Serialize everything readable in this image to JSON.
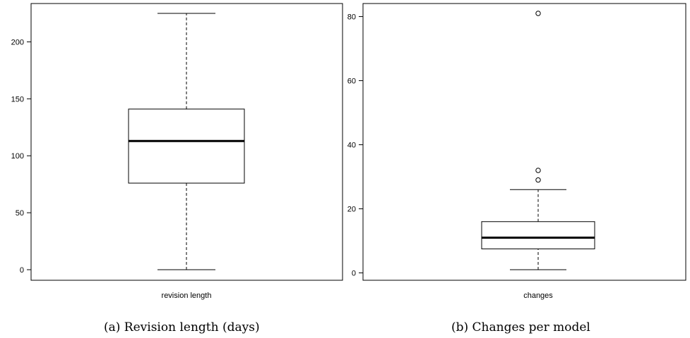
{
  "chart_data": [
    {
      "type": "boxplot",
      "caption": "(a)  Revision length (days)",
      "xlabel": "revision length",
      "ylim": [
        0,
        225
      ],
      "yticks": [
        0,
        50,
        100,
        150,
        200
      ],
      "box": {
        "min": 0,
        "q1": 76,
        "median": 113,
        "q3": 141,
        "max": 225
      },
      "outliers": []
    },
    {
      "type": "boxplot",
      "caption": "(b)  Changes per model",
      "xlabel": "changes",
      "ylim": [
        1,
        81
      ],
      "yticks": [
        0,
        20,
        40,
        60,
        80
      ],
      "box": {
        "min": 1,
        "q1": 7.5,
        "median": 11,
        "q3": 16,
        "max": 26
      },
      "outliers": [
        29,
        32,
        81
      ]
    }
  ]
}
